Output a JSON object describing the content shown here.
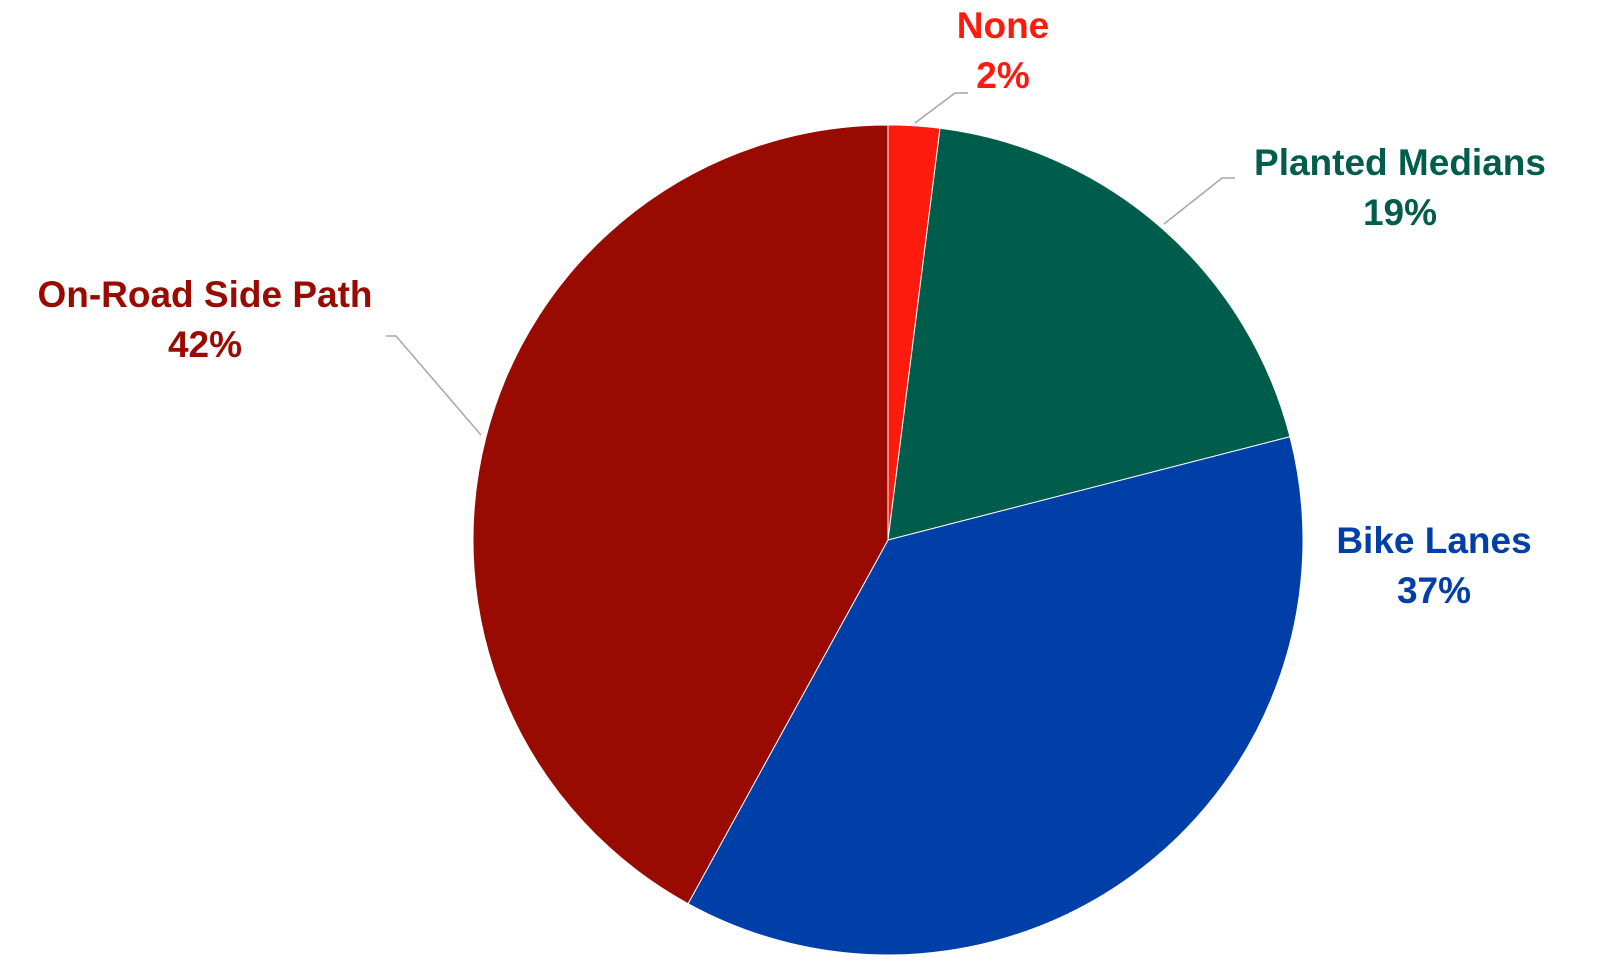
{
  "chart_data": {
    "type": "pie",
    "slices": [
      {
        "label": "None",
        "value": 2,
        "value_label": "2%",
        "color": "#ff1a0e"
      },
      {
        "label": "Planted Medians",
        "value": 19,
        "value_label": "19%",
        "color": "#005c4b"
      },
      {
        "label": "Bike Lanes",
        "value": 37,
        "value_label": "37%",
        "color": "#003ea8"
      },
      {
        "label": "On-Road Side Path",
        "value": 42,
        "value_label": "42%",
        "color": "#990a00"
      }
    ],
    "start": "12 o'clock, clockwise",
    "legend": "none",
    "data_labels": "outside with leader lines"
  }
}
